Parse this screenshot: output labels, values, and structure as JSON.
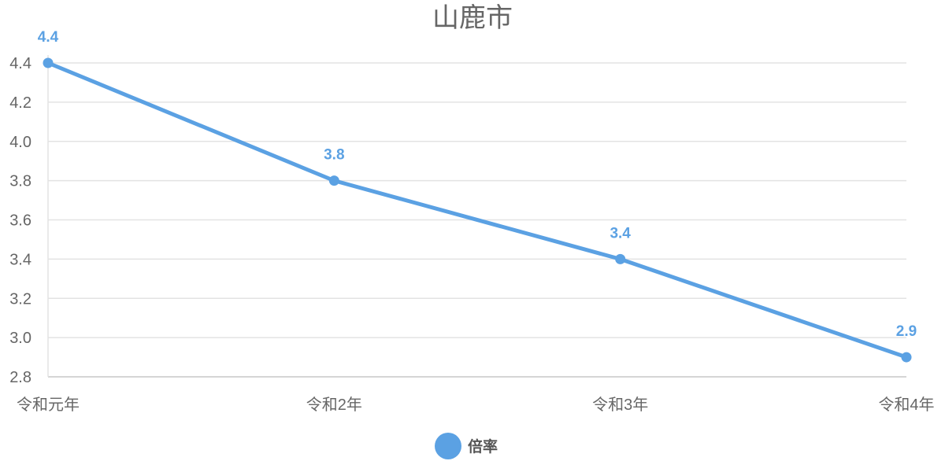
{
  "chart_data": {
    "type": "line",
    "title": "山鹿市",
    "categories": [
      "令和元年",
      "令和2年",
      "令和3年",
      "令和4年"
    ],
    "series": [
      {
        "name": "倍率",
        "values": [
          4.4,
          3.8,
          3.4,
          2.9
        ],
        "data_labels": [
          "4.4",
          "3.8",
          "3.4",
          "2.9"
        ],
        "color": "#5ba1e3"
      }
    ],
    "y_ticks": [
      "2.8",
      "3.0",
      "3.2",
      "3.4",
      "3.6",
      "3.8",
      "4.0",
      "4.2",
      "4.4"
    ],
    "ylim": [
      2.8,
      4.4
    ],
    "grid": true,
    "legend_position": "bottom"
  }
}
